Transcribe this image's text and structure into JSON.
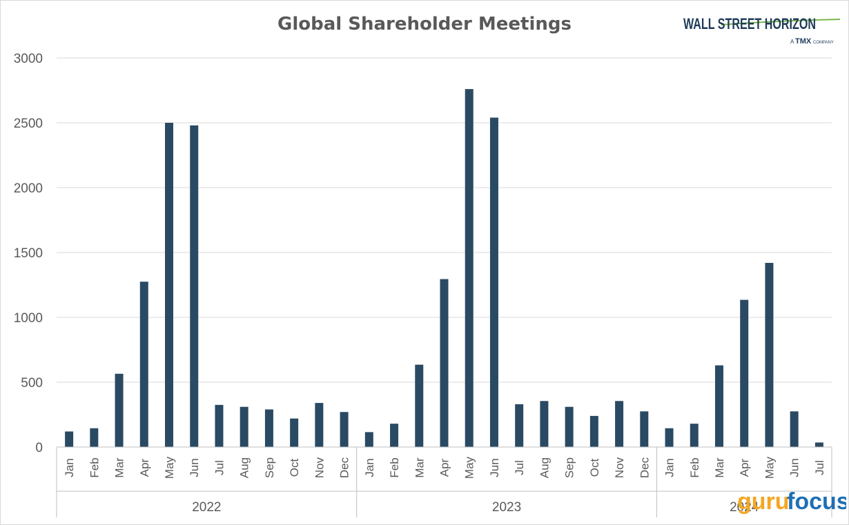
{
  "chart_data": {
    "type": "bar",
    "title": "Global Shareholder Meetings",
    "xlabel": "",
    "ylabel": "",
    "ylim": [
      0,
      3000
    ],
    "yticks": [
      0,
      500,
      1000,
      1500,
      2000,
      2500,
      3000
    ],
    "grid": true,
    "legend": "none",
    "bar_color": "#2a4a63",
    "groups": [
      {
        "label": "2022",
        "categories": [
          "Jan",
          "Feb",
          "Mar",
          "Apr",
          "May",
          "Jun",
          "Jul",
          "Aug",
          "Sep",
          "Oct",
          "Nov",
          "Dec"
        ],
        "values": [
          120,
          145,
          565,
          1275,
          2500,
          2480,
          325,
          310,
          290,
          220,
          340,
          270
        ]
      },
      {
        "label": "2023",
        "categories": [
          "Jan",
          "Feb",
          "Mar",
          "Apr",
          "May",
          "Jun",
          "Jul",
          "Aug",
          "Sep",
          "Oct",
          "Nov",
          "Dec"
        ],
        "values": [
          115,
          180,
          635,
          1295,
          2760,
          2540,
          330,
          355,
          310,
          240,
          355,
          275
        ]
      },
      {
        "label": "2024",
        "categories": [
          "Jan",
          "Feb",
          "Mar",
          "Apr",
          "May",
          "Jun",
          "Jul"
        ],
        "values": [
          145,
          180,
          630,
          1135,
          1420,
          275,
          35
        ]
      }
    ]
  },
  "logos": {
    "wsh_text": "WALL STREET HORIZON",
    "wsh_sub_a": "A",
    "wsh_sub_tmx": "TMX",
    "wsh_sub_company": "COMPANY",
    "gurufocus_guru": "guru",
    "gurufocus_focus": "focus"
  },
  "colors": {
    "bar": "#2a4a63",
    "gridline": "#d9d9d9",
    "axis_text": "#595959",
    "wsh_navy": "#1f3b5a",
    "wsh_green": "#7ab648",
    "gurufocus_orange": "#f5a623",
    "gurufocus_blue": "#1f6fb5"
  }
}
